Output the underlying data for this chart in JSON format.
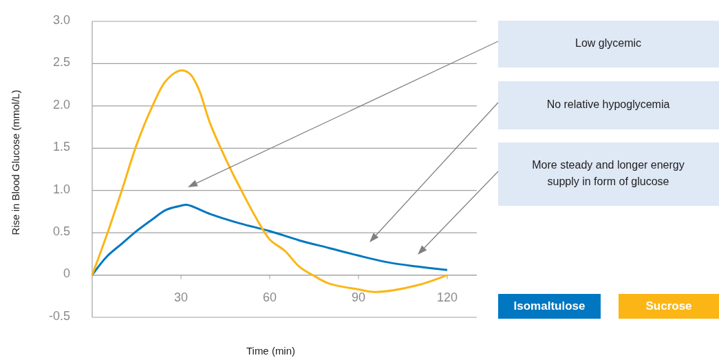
{
  "chart_data": {
    "type": "line",
    "xlabel": "Time (min)",
    "ylabel": "Rise in Blood Glucose (mmol/L)",
    "xlim": [
      0,
      130
    ],
    "xticks": [
      30,
      60,
      90,
      120
    ],
    "ylim": [
      -0.5,
      3.0
    ],
    "yticks": [
      {
        "value": -0.5,
        "label": "-0.5"
      },
      {
        "value": 0,
        "label": "0"
      },
      {
        "value": 0.5,
        "label": "0.5"
      },
      {
        "value": 1.0,
        "label": "1.0"
      },
      {
        "value": 1.5,
        "label": "1.5"
      },
      {
        "value": 2.0,
        "label": "2.0"
      },
      {
        "value": 2.5,
        "label": "2.5"
      },
      {
        "value": 3.0,
        "label": "3.0"
      }
    ],
    "grid": "y",
    "legend": "bottom right",
    "marker": "none",
    "line_style": "solid",
    "series": [
      {
        "name": "Isomaltulose",
        "color": "#0077c0",
        "x": [
          0,
          5,
          10,
          15,
          20,
          25,
          30,
          32,
          40,
          50,
          60,
          70,
          80,
          90,
          100,
          110,
          120
        ],
        "values": [
          0,
          0.22,
          0.37,
          0.52,
          0.65,
          0.77,
          0.82,
          0.83,
          0.72,
          0.61,
          0.52,
          0.41,
          0.32,
          0.23,
          0.15,
          0.1,
          0.06
        ]
      },
      {
        "name": "Sucrose",
        "color": "#fbb615",
        "x": [
          0,
          5,
          10,
          15,
          20,
          25,
          30,
          33,
          36,
          40,
          47.5,
          50,
          55,
          60,
          65,
          70,
          75,
          80,
          90,
          96,
          110,
          120
        ],
        "values": [
          0,
          0.48,
          1.0,
          1.54,
          1.97,
          2.3,
          2.42,
          2.38,
          2.2,
          1.78,
          1.2,
          1.03,
          0.7,
          0.42,
          0.29,
          0.1,
          -0.01,
          -0.1,
          -0.17,
          -0.2,
          -0.12,
          0
        ]
      }
    ],
    "annotations": [
      "Low glycemic",
      "No relative hypoglycemia",
      "More steady and longer energy\nsupply in form of glucose"
    ]
  }
}
